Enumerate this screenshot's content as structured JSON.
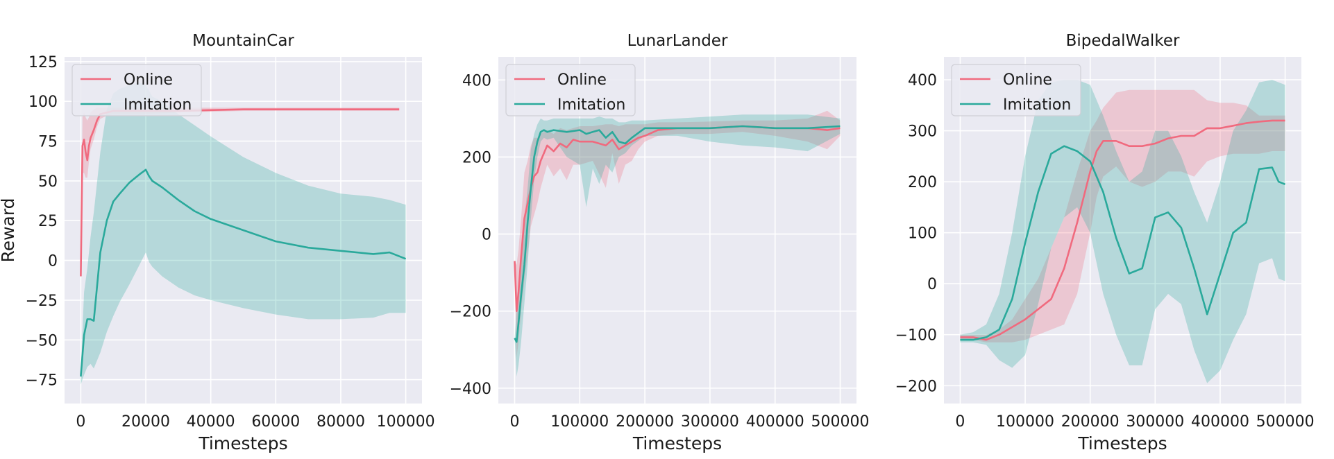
{
  "colors": {
    "online": "#f06a7e",
    "imitation": "#2aa99b",
    "panel_bg": "#eaeaf2",
    "grid": "#ffffff"
  },
  "chart_data": [
    {
      "type": "line",
      "title": "MountainCar",
      "xlabel": "Timesteps",
      "ylabel": "Reward",
      "xlim": [
        -5000,
        105000
      ],
      "ylim": [
        -90,
        128
      ],
      "xticks": [
        0,
        20000,
        40000,
        60000,
        80000,
        100000
      ],
      "xtick_labels": [
        "0",
        "20000",
        "40000",
        "60000",
        "80000",
        "100000"
      ],
      "yticks": [
        -75,
        -50,
        -25,
        0,
        25,
        50,
        75,
        100,
        125
      ],
      "ytick_labels": [
        "−75",
        "−50",
        "−25",
        "0",
        "25",
        "50",
        "75",
        "100",
        "125"
      ],
      "grid": true,
      "legend": {
        "position": "top-left",
        "entries": [
          "Online",
          "Imitation"
        ]
      },
      "series": [
        {
          "name": "Online",
          "x": [
            0,
            500,
            1000,
            1500,
            2000,
            2500,
            3000,
            4000,
            5000,
            6000,
            8000,
            10000,
            15000,
            20000,
            30000,
            40000,
            50000,
            60000,
            70000,
            80000,
            90000,
            98000
          ],
          "y": [
            -10,
            72,
            76,
            68,
            63,
            72,
            77,
            82,
            88,
            92,
            93,
            94,
            94,
            94,
            94,
            94.5,
            95,
            95,
            95,
            95,
            95,
            95
          ],
          "lower": [
            -10,
            55,
            55,
            52,
            52,
            62,
            70,
            76,
            84,
            89,
            91,
            92,
            92,
            92,
            93,
            93.5,
            94,
            94,
            94,
            94,
            94,
            94
          ],
          "upper": [
            -10,
            90,
            93,
            90,
            88,
            90,
            93,
            95,
            96,
            96,
            96,
            96,
            96,
            96,
            96,
            96,
            96,
            96,
            96,
            96,
            96,
            96
          ]
        },
        {
          "name": "Imitation",
          "x": [
            0,
            1000,
            2000,
            3000,
            4000,
            6000,
            8000,
            10000,
            12000,
            15000,
            18000,
            20000,
            21000,
            22000,
            25000,
            30000,
            35000,
            40000,
            50000,
            60000,
            70000,
            80000,
            90000,
            95000,
            100000
          ],
          "y": [
            -73,
            -47,
            -37,
            -37,
            -38,
            5,
            25,
            37,
            42,
            49,
            54,
            57,
            53,
            50,
            46,
            38,
            31,
            26,
            19,
            12,
            8,
            6,
            4,
            5,
            1
          ],
          "lower": [
            -78,
            -72,
            -67,
            -65,
            -68,
            -58,
            -45,
            -35,
            -26,
            -15,
            -3,
            5,
            -1,
            -4,
            -10,
            -17,
            -22,
            -25,
            -30,
            -34,
            -37,
            -37,
            -36,
            -33,
            -33
          ],
          "upper": [
            -70,
            -20,
            -5,
            15,
            30,
            68,
            95,
            105,
            108,
            110,
            112,
            110,
            107,
            103,
            100,
            92,
            85,
            78,
            65,
            55,
            47,
            42,
            40,
            38,
            35
          ]
        }
      ]
    },
    {
      "type": "line",
      "title": "LunarLander",
      "xlabel": "Timesteps",
      "ylabel": "",
      "xlim": [
        -25000,
        525000
      ],
      "ylim": [
        -440,
        460
      ],
      "xticks": [
        0,
        100000,
        200000,
        300000,
        400000,
        500000
      ],
      "xtick_labels": [
        "0",
        "100000",
        "200000",
        "300000",
        "400000",
        "500000"
      ],
      "yticks": [
        -400,
        -200,
        0,
        200,
        400
      ],
      "ytick_labels": [
        "−400",
        "−200",
        "0",
        "200",
        "400"
      ],
      "grid": true,
      "legend": {
        "position": "top-left",
        "entries": [
          "Online",
          "Imitation"
        ]
      },
      "series": [
        {
          "name": "Online",
          "x": [
            0,
            3000,
            6000,
            10000,
            15000,
            20000,
            25000,
            30000,
            35000,
            40000,
            50000,
            60000,
            70000,
            80000,
            90000,
            100000,
            120000,
            140000,
            150000,
            160000,
            170000,
            180000,
            190000,
            200000,
            220000,
            250000,
            300000,
            350000,
            400000,
            450000,
            480000,
            500000
          ],
          "y": [
            -70,
            -200,
            -150,
            -60,
            40,
            80,
            120,
            150,
            160,
            190,
            230,
            215,
            235,
            225,
            245,
            240,
            240,
            230,
            245,
            220,
            230,
            240,
            250,
            255,
            270,
            275,
            275,
            280,
            275,
            275,
            270,
            275
          ],
          "lower": [
            -70,
            -320,
            -280,
            -200,
            -120,
            -50,
            20,
            50,
            80,
            120,
            180,
            150,
            170,
            140,
            180,
            180,
            190,
            120,
            210,
            130,
            180,
            190,
            220,
            240,
            255,
            260,
            260,
            265,
            255,
            240,
            220,
            255
          ],
          "upper": [
            -70,
            -80,
            -40,
            40,
            160,
            190,
            230,
            250,
            250,
            260,
            270,
            260,
            275,
            270,
            275,
            280,
            280,
            285,
            285,
            280,
            285,
            285,
            285,
            285,
            290,
            290,
            292,
            295,
            295,
            300,
            320,
            295
          ]
        },
        {
          "name": "Imitation",
          "x": [
            0,
            3000,
            6000,
            10000,
            15000,
            20000,
            25000,
            30000,
            35000,
            40000,
            45000,
            50000,
            60000,
            80000,
            100000,
            110000,
            120000,
            130000,
            140000,
            150000,
            160000,
            170000,
            180000,
            200000,
            250000,
            300000,
            350000,
            400000,
            450000,
            500000
          ],
          "y": [
            -270,
            -280,
            -230,
            -160,
            -80,
            30,
            120,
            200,
            240,
            265,
            270,
            265,
            270,
            265,
            270,
            260,
            265,
            270,
            250,
            265,
            240,
            235,
            250,
            275,
            275,
            275,
            280,
            275,
            275,
            280
          ],
          "lower": [
            -270,
            -370,
            -340,
            -280,
            -180,
            -80,
            40,
            140,
            200,
            240,
            250,
            245,
            250,
            200,
            180,
            70,
            170,
            130,
            180,
            160,
            200,
            210,
            230,
            255,
            255,
            240,
            230,
            225,
            215,
            260
          ],
          "upper": [
            -270,
            -200,
            -140,
            -40,
            40,
            120,
            220,
            260,
            285,
            300,
            295,
            295,
            300,
            300,
            300,
            300,
            300,
            305,
            300,
            300,
            290,
            290,
            295,
            295,
            300,
            305,
            310,
            310,
            310,
            300
          ]
        }
      ]
    },
    {
      "type": "line",
      "title": "BipedalWalker",
      "xlabel": "Timesteps",
      "ylabel": "",
      "xlim": [
        -25000,
        525000
      ],
      "ylim": [
        -235,
        445
      ],
      "xticks": [
        0,
        100000,
        200000,
        300000,
        400000,
        500000
      ],
      "xtick_labels": [
        "0",
        "100000",
        "200000",
        "300000",
        "400000",
        "500000"
      ],
      "yticks": [
        -200,
        -100,
        0,
        100,
        200,
        300,
        400
      ],
      "ytick_labels": [
        "−200",
        "−100",
        "0",
        "100",
        "200",
        "300",
        "400"
      ],
      "grid": true,
      "legend": {
        "position": "top-left",
        "entries": [
          "Online",
          "Imitation"
        ]
      },
      "series": [
        {
          "name": "Online",
          "x": [
            0,
            20000,
            40000,
            60000,
            80000,
            100000,
            120000,
            140000,
            160000,
            180000,
            200000,
            210000,
            220000,
            240000,
            260000,
            280000,
            300000,
            320000,
            340000,
            360000,
            380000,
            400000,
            420000,
            440000,
            460000,
            480000,
            500000
          ],
          "y": [
            -105,
            -105,
            -110,
            -100,
            -85,
            -70,
            -50,
            -30,
            30,
            120,
            220,
            260,
            280,
            280,
            270,
            270,
            275,
            285,
            290,
            290,
            305,
            305,
            310,
            315,
            318,
            320,
            320
          ],
          "lower": [
            -110,
            -110,
            -115,
            -115,
            -115,
            -110,
            -100,
            -90,
            -80,
            -20,
            100,
            170,
            210,
            230,
            200,
            190,
            200,
            220,
            220,
            210,
            240,
            250,
            255,
            255,
            255,
            260,
            260
          ],
          "upper": [
            -100,
            -100,
            -100,
            -90,
            -70,
            -30,
            10,
            70,
            130,
            220,
            300,
            320,
            345,
            375,
            380,
            380,
            380,
            380,
            380,
            380,
            360,
            355,
            355,
            350,
            330,
            330,
            330
          ]
        },
        {
          "name": "Imitation",
          "x": [
            0,
            20000,
            40000,
            60000,
            80000,
            100000,
            120000,
            140000,
            160000,
            180000,
            200000,
            220000,
            240000,
            260000,
            280000,
            300000,
            320000,
            340000,
            360000,
            380000,
            400000,
            420000,
            440000,
            460000,
            480000,
            490000,
            500000
          ],
          "y": [
            -110,
            -110,
            -105,
            -90,
            -30,
            80,
            180,
            255,
            270,
            260,
            240,
            180,
            90,
            20,
            30,
            130,
            140,
            110,
            30,
            -60,
            20,
            100,
            120,
            225,
            228,
            200,
            195
          ],
          "lower": [
            -115,
            -115,
            -120,
            -150,
            -165,
            -140,
            -40,
            70,
            130,
            150,
            100,
            -20,
            -100,
            -160,
            -160,
            -50,
            -20,
            -40,
            -130,
            -195,
            -170,
            -110,
            -60,
            40,
            50,
            10,
            5
          ],
          "upper": [
            -100,
            -95,
            -80,
            -20,
            100,
            250,
            360,
            395,
            400,
            400,
            390,
            330,
            260,
            200,
            220,
            300,
            300,
            250,
            180,
            120,
            200,
            300,
            340,
            395,
            400,
            395,
            390
          ]
        }
      ]
    }
  ]
}
